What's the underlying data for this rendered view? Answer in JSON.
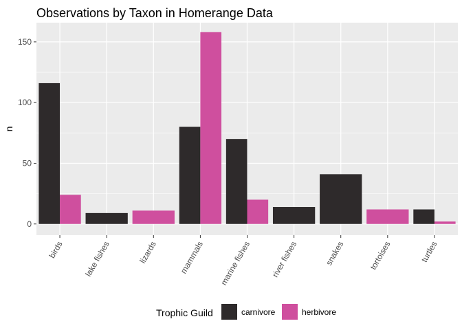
{
  "chart_data": {
    "type": "bar",
    "title": "Observations by Taxon in Homerange Data",
    "xlabel": "",
    "ylabel": "n",
    "categories": [
      "birds",
      "lake fishes",
      "lizards",
      "mammals",
      "marine fishes",
      "river fishes",
      "snakes",
      "tortoises",
      "turtles"
    ],
    "series": [
      {
        "name": "carnivore",
        "color": "#2e2a2b",
        "values": [
          116,
          9,
          null,
          80,
          70,
          14,
          41,
          null,
          12
        ]
      },
      {
        "name": "herbivore",
        "color": "#cf4f9e",
        "values": [
          24,
          null,
          11,
          158,
          20,
          null,
          null,
          12,
          2
        ]
      }
    ],
    "ylim": [
      0,
      165
    ],
    "yticks": [
      0,
      50,
      100,
      150
    ],
    "grid": true,
    "legend": {
      "title": "Trophic Guild",
      "position": "bottom"
    },
    "panel_background": "#ebebeb",
    "gridline_color": "#ffffff"
  }
}
